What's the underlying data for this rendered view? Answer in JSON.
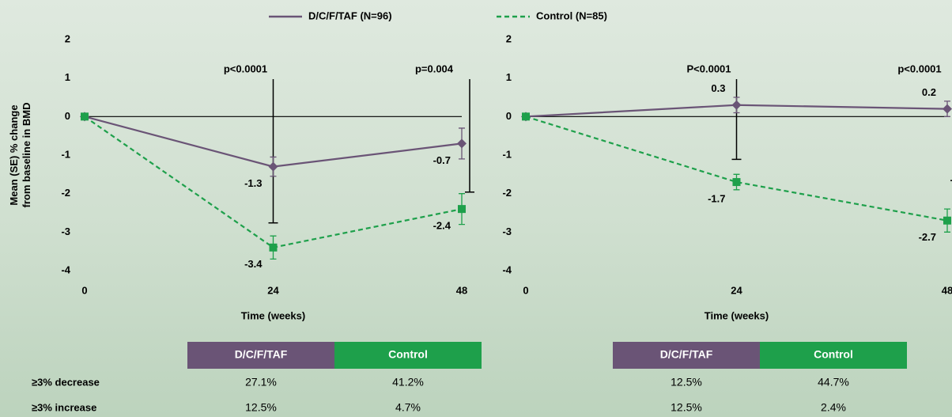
{
  "chart_data": [
    {
      "type": "line",
      "ylabel": "Mean (SE) % change from baseline in BMD",
      "xlabel": "Time (weeks)",
      "x": [
        0,
        24,
        48
      ],
      "xlim": [
        0,
        48
      ],
      "xticks": [
        0,
        24,
        48
      ],
      "ylim": [
        -4,
        2
      ],
      "yticks": [
        2,
        1,
        0,
        -1,
        -2,
        -3,
        -4
      ],
      "series": [
        {
          "name": "D/C/F/TAF (N=96)",
          "color": "#6a5476",
          "values": [
            0,
            -1.3,
            -0.7
          ],
          "errors": [
            null,
            0.25,
            0.4
          ],
          "value_labels": [
            null,
            "-1.3",
            "-0.7"
          ]
        },
        {
          "name": "Control (N=85)",
          "color": "#1ea04b",
          "values": [
            0,
            -3.4,
            -2.4
          ],
          "errors": [
            null,
            0.3,
            0.4
          ],
          "value_labels": [
            null,
            "-3.4",
            "-2.4"
          ]
        }
      ],
      "annotations": [
        {
          "x": 24,
          "text": "p<0.0001"
        },
        {
          "x": 48,
          "text": "p=0.004"
        }
      ]
    },
    {
      "type": "line",
      "xlabel": "Time (weeks)",
      "x": [
        0,
        24,
        48
      ],
      "xlim": [
        0,
        48
      ],
      "xticks": [
        0,
        24,
        48
      ],
      "ylim": [
        -4,
        2
      ],
      "yticks": [
        2,
        1,
        0,
        -1,
        -2,
        -3,
        -4
      ],
      "series": [
        {
          "color": "#6a5476",
          "values": [
            0,
            0.3,
            0.2
          ],
          "errors": [
            null,
            0.2,
            0.2
          ],
          "value_labels": [
            null,
            "0.3",
            "0.2"
          ]
        },
        {
          "color": "#1ea04b",
          "values": [
            0,
            -1.7,
            -2.7
          ],
          "errors": [
            null,
            0.2,
            0.3
          ],
          "value_labels": [
            null,
            "-1.7",
            "-2.7"
          ]
        }
      ],
      "annotations": [
        {
          "x": 24,
          "text": "P<0.0001"
        },
        {
          "x": 48,
          "text": "p<0.0001"
        }
      ]
    }
  ],
  "tables": [
    {
      "header": [
        "D/C/F/TAF",
        "Control"
      ],
      "rows": [
        {
          "label": "≥3% decrease",
          "cells": [
            "27.1%",
            "41.2%"
          ]
        },
        {
          "label": "≥3% increase",
          "cells": [
            "12.5%",
            "4.7%"
          ]
        }
      ]
    },
    {
      "header": [
        "D/C/F/TAF",
        "Control"
      ],
      "rows": [
        {
          "cells": [
            "12.5%",
            "44.7%"
          ]
        },
        {
          "cells": [
            "12.5%",
            "2.4%"
          ]
        }
      ]
    }
  ]
}
